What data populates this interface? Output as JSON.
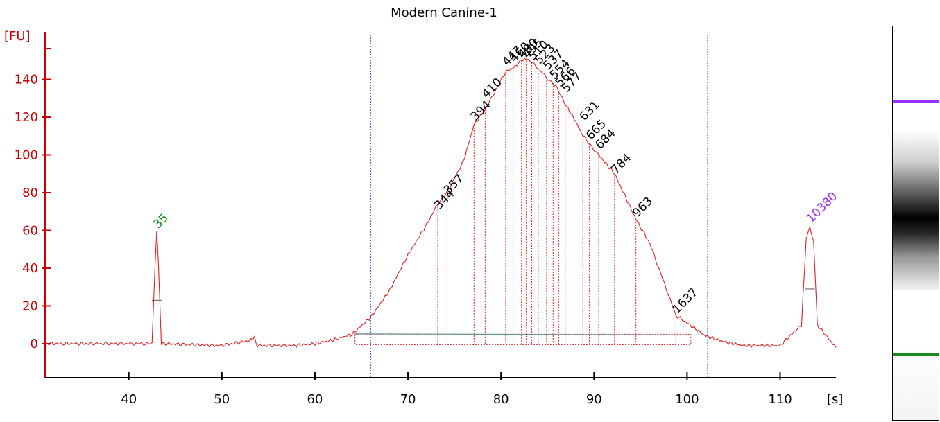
{
  "chart_data": {
    "type": "line",
    "title": "Modern Canine-1",
    "ylabel": "[FU]",
    "xlabel": "[s]",
    "xlim": [
      31,
      116
    ],
    "ylim": [
      -18,
      160
    ],
    "xticks": [
      40,
      50,
      60,
      70,
      80,
      90,
      100,
      110
    ],
    "yticks": [
      0,
      20,
      40,
      60,
      80,
      100,
      120,
      140
    ],
    "grid": false,
    "series": [
      {
        "x": [
          31,
          40,
          42.5,
          42.8,
          43.0,
          43.2,
          43.5,
          50,
          53.3,
          53.5,
          53.8,
          58,
          60,
          62,
          64,
          66,
          68,
          70,
          72,
          73.2,
          74.2,
          76,
          77.1,
          78.3,
          80.5,
          81.3,
          82.2,
          82.7,
          83.3,
          84.0,
          84.9,
          85.6,
          86.2,
          86.9,
          88.0,
          88.8,
          89.5,
          90.5,
          92.2,
          94.5,
          96,
          98.8,
          100,
          102,
          104,
          106,
          108,
          110,
          112.3,
          112.8,
          113.2,
          113.6,
          114,
          116
        ],
        "y": [
          0,
          0,
          0,
          40,
          60,
          40,
          0,
          -1,
          2,
          3,
          -1,
          -1,
          0,
          2,
          5,
          14,
          28,
          47,
          63,
          74,
          80,
          97,
          116,
          124,
          144,
          146,
          150,
          151,
          149,
          146,
          141,
          138,
          134,
          127,
          118,
          110,
          106,
          100,
          90,
          66,
          53,
          15,
          11,
          4,
          1,
          -1,
          -1,
          -1,
          10,
          55,
          62,
          55,
          10,
          -2
        ]
      }
    ],
    "peak_labels": [
      {
        "x": 43.0,
        "y": 60,
        "text": "35",
        "color": "#1a8a1a"
      },
      {
        "x": 73.2,
        "y": 70,
        "text": "344",
        "color": "#000000"
      },
      {
        "x": 74.2,
        "y": 78,
        "text": "357",
        "color": "#000000"
      },
      {
        "x": 77.1,
        "y": 117,
        "text": "394",
        "color": "#000000"
      },
      {
        "x": 78.3,
        "y": 129,
        "text": "410",
        "color": "#000000"
      },
      {
        "x": 80.5,
        "y": 146,
        "text": "447",
        "color": "#000000"
      },
      {
        "x": 81.3,
        "y": 148,
        "text": "460",
        "color": "#000000"
      },
      {
        "x": 82.2,
        "y": 150,
        "text": "480",
        "color": "#000000"
      },
      {
        "x": 82.7,
        "y": 150,
        "text": "495",
        "color": "#000000"
      },
      {
        "x": 83.3,
        "y": 149,
        "text": "510",
        "color": "#000000"
      },
      {
        "x": 84.0,
        "y": 147,
        "text": "523",
        "color": "#000000"
      },
      {
        "x": 84.9,
        "y": 144,
        "text": "537",
        "color": "#000000"
      },
      {
        "x": 85.6,
        "y": 139,
        "text": "554",
        "color": "#000000"
      },
      {
        "x": 86.2,
        "y": 135,
        "text": "566",
        "color": "#000000"
      },
      {
        "x": 86.9,
        "y": 132,
        "text": "577",
        "color": "#000000"
      },
      {
        "x": 88.8,
        "y": 117,
        "text": "631",
        "color": "#000000"
      },
      {
        "x": 89.5,
        "y": 107,
        "text": "665",
        "color": "#000000"
      },
      {
        "x": 90.5,
        "y": 102,
        "text": "684",
        "color": "#000000"
      },
      {
        "x": 92.2,
        "y": 89,
        "text": "784",
        "color": "#000000"
      },
      {
        "x": 94.5,
        "y": 66,
        "text": "963",
        "color": "#000000"
      },
      {
        "x": 98.8,
        "y": 15,
        "text": "1637",
        "color": "#000000"
      },
      {
        "x": 113.2,
        "y": 63,
        "text": "10380",
        "color": "#9b30ff"
      }
    ],
    "region_lines": [
      66.0,
      102.2
    ],
    "region_bounds": [
      64.3,
      100.4
    ],
    "colors": {
      "trace": "#e02020",
      "axis": "#cc0000",
      "region": "#4a55cc",
      "baseline": "#5f9a9a",
      "ladder_marker": "#1a8a1a",
      "upper_marker": "#9b30ff"
    }
  },
  "gel_lane": {
    "bands": [
      {
        "name": "upper-marker-band",
        "color": "#9b30ff"
      },
      {
        "name": "lower-marker-band",
        "color": "#1a8a1a"
      }
    ]
  }
}
